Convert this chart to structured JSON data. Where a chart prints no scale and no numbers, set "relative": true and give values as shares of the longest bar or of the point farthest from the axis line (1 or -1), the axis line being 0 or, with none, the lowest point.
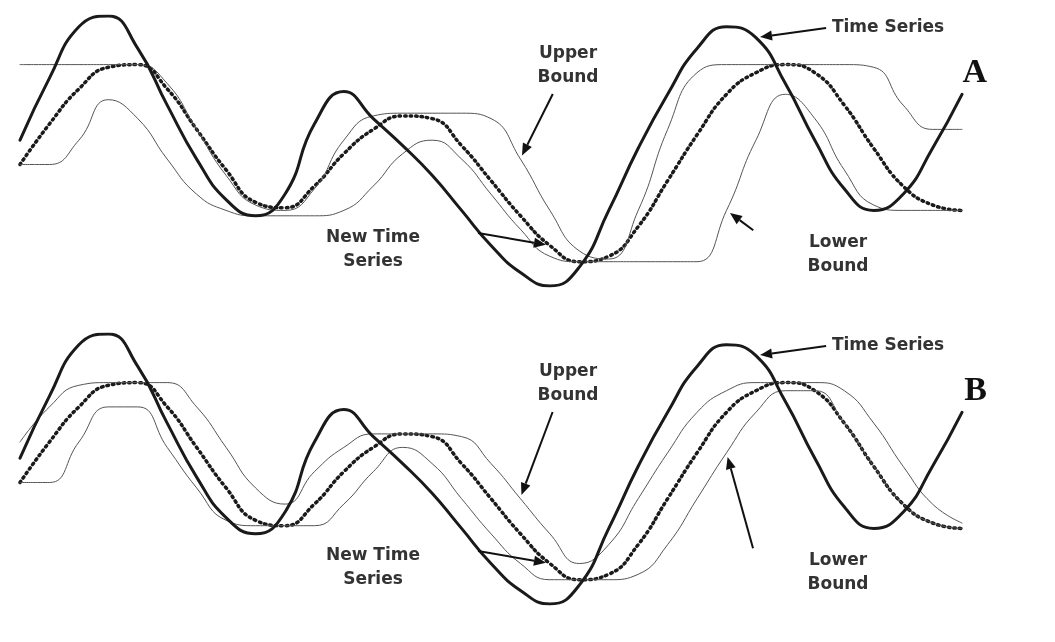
{
  "chart_data": [
    {
      "type": "line",
      "title": "A",
      "relative": true,
      "annotations": [
        "Time Series",
        "New Time Series",
        "Upper Bound",
        "Lower Bound"
      ],
      "categories": [
        null,
        null,
        null,
        null,
        null,
        null,
        null,
        null,
        null,
        null,
        null,
        null,
        null,
        null,
        null,
        null,
        null,
        null,
        null,
        null,
        null,
        null,
        null,
        null,
        null,
        null,
        null,
        null,
        null,
        null,
        null,
        null,
        null
      ],
      "series": [
        {
          "color": "#1a1a1a",
          "line_style": "solid",
          "values": [
            0.54,
            0.77,
            0.96,
            1.0,
            0.88,
            0.67,
            0.47,
            0.32,
            0.26,
            0.34,
            0.6,
            0.72,
            0.62,
            0.52,
            0.41,
            0.28,
            0.15,
            0.05,
            0,
            0.07,
            0.28,
            0.51,
            0.71,
            0.88,
            0.96,
            0.92,
            0.75,
            0.54,
            0.36,
            0.28,
            0.34,
            0.51,
            0.71
          ]
        },
        {
          "color": "#1a1a1a",
          "line_style": "dotted",
          "values": [
            0.45,
            0.6,
            0.73,
            0.81,
            0.82,
            0.73,
            0.58,
            0.43,
            0.31,
            0.29,
            0.37,
            0.49,
            0.58,
            0.63,
            0.62,
            0.52,
            0.39,
            0.26,
            0.15,
            0.09,
            0.11,
            0.22,
            0.39,
            0.56,
            0.71,
            0.79,
            0.82,
            0.79,
            0.67,
            0.51,
            0.37,
            0.3,
            0.28
          ]
        },
        {
          "color": "#555555",
          "line_style": "solid",
          "values": [
            0.82,
            0.82,
            0.82,
            0.82,
            0.82,
            0.75,
            0.58,
            0.41,
            0.3,
            0.28,
            0.36,
            0.54,
            0.63,
            0.64,
            0.64,
            0.64,
            0.62,
            0.47,
            0.28,
            0.13,
            0.1,
            0.28,
            0.58,
            0.79,
            0.82,
            0.82,
            0.82,
            0.82,
            0.82,
            0.81,
            0.67,
            0.58,
            0.58
          ]
        },
        {
          "color": "#555555",
          "line_style": "solid",
          "values": [
            0.45,
            0.45,
            0.54,
            0.69,
            0.62,
            0.47,
            0.34,
            0.28,
            0.26,
            0.26,
            0.26,
            0.28,
            0.37,
            0.49,
            0.54,
            0.47,
            0.34,
            0.21,
            0.11,
            0.09,
            0.09,
            0.09,
            0.09,
            0.09,
            0.28,
            0.54,
            0.71,
            0.62,
            0.43,
            0.3,
            0.28,
            0.28,
            0.28
          ]
        }
      ]
    },
    {
      "type": "line",
      "title": "B",
      "relative": true,
      "annotations": [
        "Time Series",
        "New Time Series",
        "Upper Bound",
        "Lower Bound"
      ],
      "categories": [
        null,
        null,
        null,
        null,
        null,
        null,
        null,
        null,
        null,
        null,
        null,
        null,
        null,
        null,
        null,
        null,
        null,
        null,
        null,
        null,
        null,
        null,
        null,
        null,
        null,
        null,
        null,
        null,
        null,
        null,
        null,
        null,
        null
      ],
      "series": [
        {
          "color": "#1a1a1a",
          "line_style": "solid",
          "values": [
            0.54,
            0.77,
            0.96,
            1.0,
            0.88,
            0.67,
            0.47,
            0.32,
            0.26,
            0.34,
            0.6,
            0.72,
            0.62,
            0.52,
            0.41,
            0.28,
            0.15,
            0.05,
            0,
            0.07,
            0.28,
            0.51,
            0.71,
            0.88,
            0.96,
            0.92,
            0.75,
            0.54,
            0.36,
            0.28,
            0.34,
            0.51,
            0.71
          ]
        },
        {
          "color": "#1a1a1a",
          "line_style": "dotted",
          "values": [
            0.45,
            0.6,
            0.73,
            0.81,
            0.82,
            0.73,
            0.58,
            0.43,
            0.31,
            0.29,
            0.37,
            0.49,
            0.58,
            0.63,
            0.62,
            0.52,
            0.39,
            0.26,
            0.15,
            0.09,
            0.11,
            0.22,
            0.39,
            0.56,
            0.71,
            0.79,
            0.82,
            0.79,
            0.67,
            0.51,
            0.37,
            0.3,
            0.28
          ]
        },
        {
          "color": "#555555",
          "line_style": "solid",
          "values": [
            0.6,
            0.73,
            0.81,
            0.82,
            0.82,
            0.82,
            0.73,
            0.58,
            0.43,
            0.37,
            0.49,
            0.58,
            0.63,
            0.63,
            0.63,
            0.62,
            0.52,
            0.39,
            0.26,
            0.15,
            0.22,
            0.39,
            0.56,
            0.71,
            0.79,
            0.82,
            0.82,
            0.82,
            0.79,
            0.67,
            0.51,
            0.37,
            0.3
          ]
        },
        {
          "color": "#555555",
          "line_style": "solid",
          "values": [
            0.45,
            0.45,
            0.6,
            0.73,
            0.73,
            0.58,
            0.43,
            0.31,
            0.29,
            0.29,
            0.29,
            0.37,
            0.49,
            0.58,
            0.52,
            0.39,
            0.26,
            0.15,
            0.09,
            0.09,
            0.09,
            0.11,
            0.22,
            0.39,
            0.56,
            0.71,
            0.79,
            0.79,
            0.67,
            0.51,
            0.37,
            0.3,
            0.28
          ]
        }
      ]
    }
  ]
}
